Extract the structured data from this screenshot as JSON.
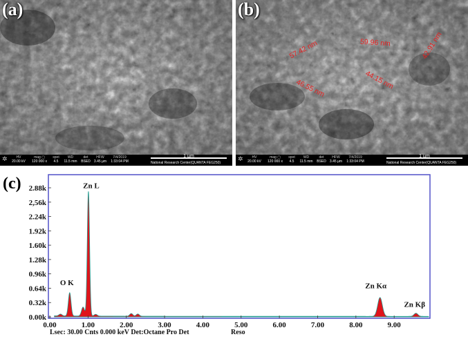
{
  "panels": [
    {
      "letter": "(a)",
      "measurements": []
    },
    {
      "letter": "(b)",
      "measurements": [
        {
          "text": "57.42 nm"
        },
        {
          "text": "59.96 nm"
        },
        {
          "text": "42.91 nm"
        },
        {
          "text": "44.15 nm"
        },
        {
          "text": "46.55 nm"
        }
      ]
    }
  ],
  "sem_infobar": {
    "cells": [
      {
        "key": "HV",
        "value": "20.00 kV"
      },
      {
        "key": "mag ▢",
        "value": "120 000 x"
      },
      {
        "key": "spot",
        "value": "4.5"
      },
      {
        "key": "WD",
        "value": "11.5 mm"
      },
      {
        "key": "det",
        "value": "BSED"
      },
      {
        "key": "HFW",
        "value": "3.45 µm"
      },
      {
        "key": "7/4/2019",
        "value": "1:33:04 PM"
      }
    ],
    "scale_label": "1 µm",
    "lab": "National Research Center(QUANTA FEG250)"
  },
  "eds": {
    "panel_letter": "(c)",
    "footer": {
      "lsec": "Lsec: 30.00 Cnts 0.000 keV Det:Octane Pro Det",
      "reso": "Reso"
    }
  },
  "chart_data": {
    "type": "area",
    "x_unit": "keV",
    "xlim": [
      0,
      9.9
    ],
    "ylim": [
      0,
      2.88
    ],
    "x_ticks": [
      "0.00",
      "1.00",
      "2.00",
      "3.00",
      "4.00",
      "5.00",
      "6.00",
      "7.00",
      "8.00",
      "9.00"
    ],
    "y_ticks": [
      "0.00k",
      "0.32k",
      "0.64k",
      "0.96k",
      "1.28k",
      "1.60k",
      "1.92k",
      "2.24k",
      "2,56k",
      "2.88k"
    ],
    "peaks": [
      {
        "label": "O K",
        "x": 0.52,
        "y": 0.52
      },
      {
        "label": "Zn L",
        "x": 1.01,
        "y": 2.78
      },
      {
        "label": "Zn Kα",
        "x": 8.63,
        "y": 0.42
      },
      {
        "label": "Zn Kβ",
        "x": 9.57,
        "y": 0.07
      }
    ],
    "minor_peaks": [
      {
        "x": 0.28,
        "y": 0.04
      },
      {
        "x": 0.87,
        "y": 0.2
      },
      {
        "x": 1.2,
        "y": 0.04
      },
      {
        "x": 2.13,
        "y": 0.06
      },
      {
        "x": 2.3,
        "y": 0.05
      }
    ],
    "colors": {
      "fill": "#e0141b",
      "outline": "#1f9a8f",
      "frame": "#5050c8"
    },
    "grid": false
  }
}
